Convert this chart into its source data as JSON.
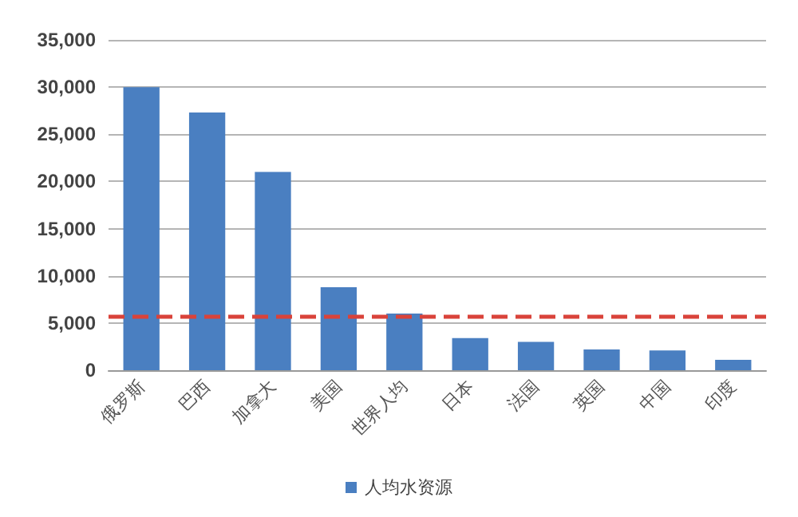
{
  "chart_data": {
    "type": "bar",
    "categories": [
      "俄罗斯",
      "巴西",
      "加拿大",
      "美国",
      "世界人均",
      "日本",
      "法国",
      "英国",
      "中国",
      "印度"
    ],
    "series": [
      {
        "name": "人均水资源",
        "color": "#4a7fc1",
        "values": [
          30000,
          27300,
          21000,
          8800,
          6000,
          3400,
          3000,
          2200,
          2100,
          1100
        ]
      }
    ],
    "ylim": [
      0,
      35000
    ],
    "yticks": [
      {
        "value": 0,
        "label": "0"
      },
      {
        "value": 5000,
        "label": "5,000"
      },
      {
        "value": 10000,
        "label": "10,000"
      },
      {
        "value": 15000,
        "label": "15,000"
      },
      {
        "value": 20000,
        "label": "20,000"
      },
      {
        "value": 25000,
        "label": "25,000"
      },
      {
        "value": 30000,
        "label": "30,000"
      },
      {
        "value": 35000,
        "label": "35,000"
      }
    ],
    "ref_lines": [
      {
        "axis": "y",
        "value": 5700,
        "color": "#d9433a",
        "line_style": "dashed"
      }
    ],
    "grid": "y",
    "legend": "bottom"
  }
}
